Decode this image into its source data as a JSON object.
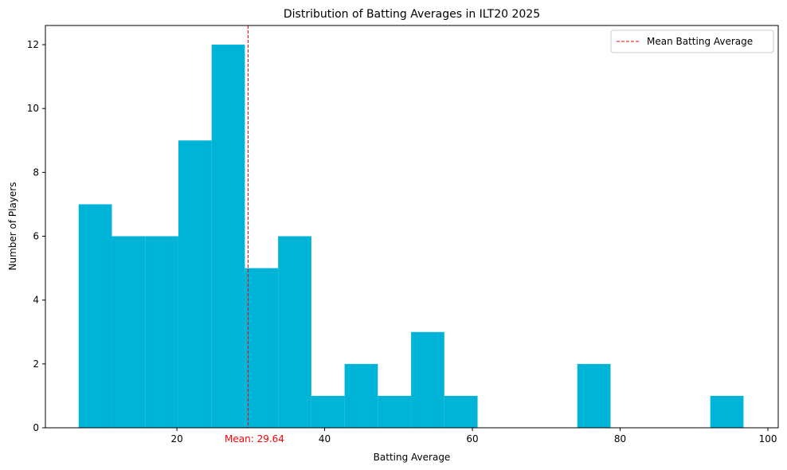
{
  "chart_data": {
    "type": "bar",
    "title": "Distribution of Batting Averages in ILT20 2025",
    "xlabel": "Batting Average",
    "ylabel": "Number of Players",
    "xlim": [
      2.2,
      101.4
    ],
    "ylim": [
      0,
      12.6
    ],
    "xticks": [
      20,
      40,
      60,
      80,
      100
    ],
    "yticks": [
      0,
      2,
      4,
      6,
      8,
      10,
      12
    ],
    "bin_edges": [
      6.7,
      11.2,
      15.7,
      20.2,
      24.7,
      29.2,
      33.7,
      38.2,
      42.7,
      47.2,
      51.7,
      56.2,
      60.7,
      65.2,
      69.7,
      74.2,
      78.7,
      83.2,
      87.7,
      92.2,
      96.7
    ],
    "counts": [
      7,
      6,
      6,
      9,
      12,
      5,
      6,
      1,
      2,
      1,
      3,
      1,
      0,
      0,
      0,
      2,
      0,
      0,
      0,
      1
    ],
    "bar_color": "#00b4d8",
    "mean": {
      "value": 29.64,
      "label": "Mean: 29.64",
      "color": "#ff0000"
    },
    "legend": {
      "label": "Mean Batting Average",
      "position": "top-right"
    },
    "grid": false
  }
}
